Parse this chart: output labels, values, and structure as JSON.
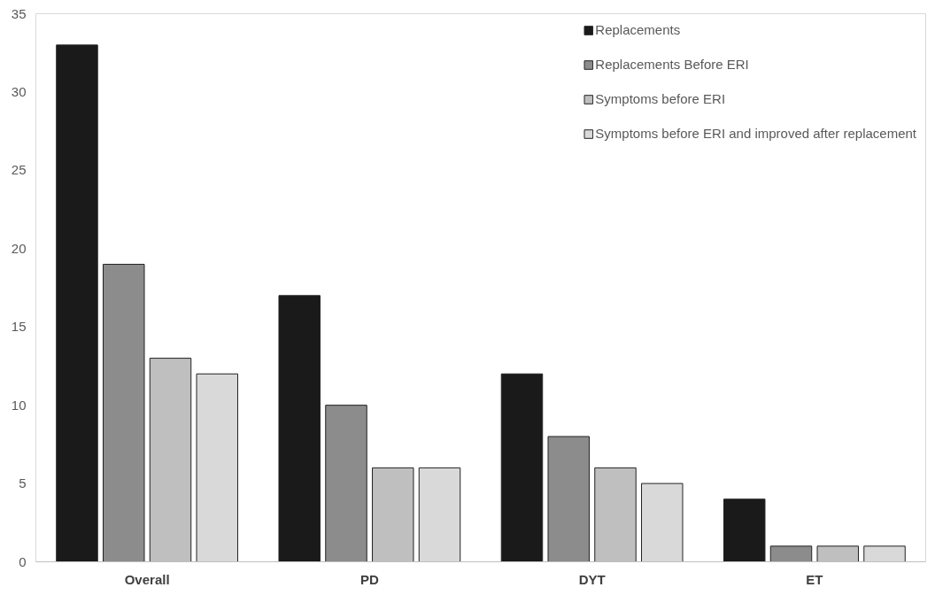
{
  "chart_data": {
    "type": "bar",
    "categories": [
      "Overall",
      "PD",
      "DYT",
      "ET"
    ],
    "series": [
      {
        "name": "Replacements",
        "color": "#1a1a1a",
        "values": [
          33,
          17,
          12,
          4
        ]
      },
      {
        "name": "Replacements Before ERI",
        "color": "#8c8c8c",
        "values": [
          19,
          10,
          8,
          1
        ]
      },
      {
        "name": "Symptoms before ERI",
        "color": "#bfbfbf",
        "values": [
          13,
          6,
          6,
          1
        ]
      },
      {
        "name": "Symptoms before ERI and improved after replacement",
        "color": "#d9d9d9",
        "values": [
          12,
          6,
          5,
          1
        ]
      }
    ],
    "ylim": [
      0,
      35
    ],
    "yticks": [
      0,
      5,
      10,
      15,
      20,
      25,
      30,
      35
    ],
    "grid": false,
    "legend": "top right"
  }
}
